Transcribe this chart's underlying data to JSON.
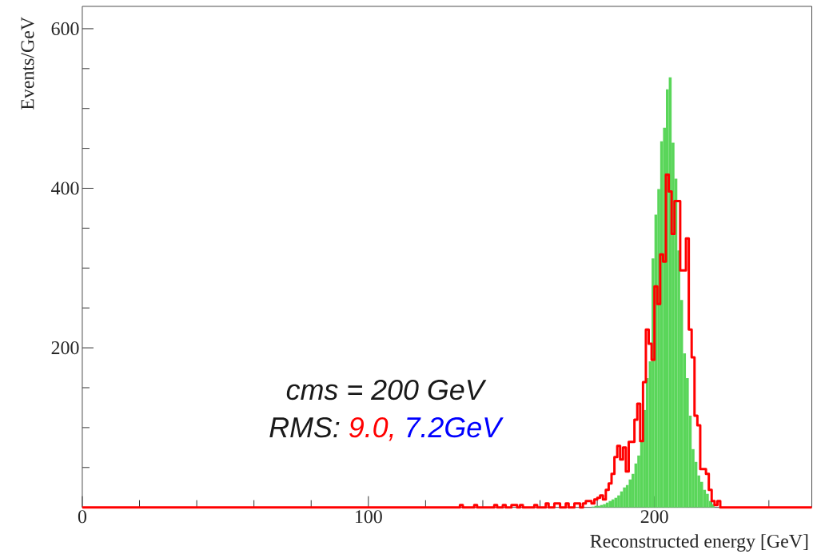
{
  "chart_data": {
    "type": "histogram",
    "xlabel": "Reconstructed energy [GeV]",
    "ylabel": "Events/GeV",
    "xlim": [
      0,
      255
    ],
    "ylim": [
      0,
      628
    ],
    "xticks": [
      0,
      {
        "value": 20,
        "label": null
      },
      {
        "value": 40,
        "label": null
      },
      {
        "value": 60,
        "label": null
      },
      {
        "value": 80,
        "label": null
      },
      100,
      {
        "value": 120,
        "label": null
      },
      {
        "value": 140,
        "label": null
      },
      {
        "value": 160,
        "label": null
      },
      {
        "value": 180,
        "label": null
      },
      200,
      {
        "value": 220,
        "label": null
      },
      {
        "value": 240,
        "label": null
      }
    ],
    "yticks": [
      {
        "value": 50,
        "label": null
      },
      {
        "value": 100,
        "label": null
      },
      {
        "value": 150,
        "label": null
      },
      200,
      {
        "value": 250,
        "label": null
      },
      {
        "value": 300,
        "label": null
      },
      {
        "value": 350,
        "label": null
      },
      400,
      {
        "value": 450,
        "label": null
      },
      {
        "value": 500,
        "label": null
      },
      {
        "value": 550,
        "label": null
      },
      600
    ],
    "annotations": [
      "cms = 200 GeV",
      "RMS:",
      "9.0,",
      "7.2GeV"
    ],
    "series": [
      {
        "color": "#5ad65a",
        "bins": [
          178,
          179,
          180,
          181,
          182,
          183,
          184,
          185,
          186,
          187,
          188,
          189,
          190,
          191,
          192,
          193,
          194,
          195,
          196,
          197,
          198,
          199,
          200,
          201,
          202,
          203,
          204,
          205,
          206,
          207,
          208,
          209,
          210,
          211,
          212,
          213,
          214,
          215,
          216,
          217,
          218,
          219,
          220,
          221
        ],
        "values": [
          1,
          2,
          2,
          3,
          4,
          6,
          8,
          10,
          12,
          15,
          20,
          25,
          28,
          35,
          42,
          55,
          65,
          82,
          122,
          162,
          183,
          312,
          367,
          399,
          459,
          476,
          524,
          539,
          457,
          412,
          322,
          260,
          193,
          162,
          115,
          73,
          57,
          40,
          32,
          22,
          17,
          8,
          4
        ]
      },
      {
        "type": "step",
        "color": "#ff0000",
        "x": [
          0,
          130,
          131,
          132,
          133,
          134,
          135,
          136,
          137,
          138,
          139,
          140,
          141,
          142,
          143,
          144,
          145,
          146,
          147,
          148,
          149,
          150,
          151,
          152,
          153,
          154,
          155,
          156,
          157,
          158,
          159,
          160,
          161,
          162,
          163,
          164,
          165,
          166,
          167,
          168,
          169,
          170,
          171,
          172,
          173,
          174,
          175,
          176,
          177,
          178,
          179,
          180,
          181,
          182,
          183,
          184,
          185,
          186,
          187,
          188,
          189,
          190,
          191,
          192,
          193,
          194,
          195,
          196,
          197,
          198,
          199,
          200,
          201,
          202,
          203,
          204,
          205,
          206,
          207,
          208,
          209,
          210,
          211,
          212,
          213,
          214,
          215,
          216,
          217,
          218,
          219,
          220,
          221,
          222,
          223,
          224,
          225,
          255
        ],
        "values": [
          0,
          0,
          0,
          3,
          0,
          0,
          0,
          0,
          3,
          0,
          0,
          0,
          0,
          0,
          0,
          3,
          0,
          0,
          3,
          0,
          0,
          3,
          3,
          0,
          3,
          0,
          0,
          0,
          0,
          3,
          0,
          0,
          0,
          5,
          0,
          0,
          5,
          5,
          0,
          0,
          5,
          0,
          0,
          5,
          5,
          0,
          5,
          8,
          8,
          5,
          10,
          12,
          15,
          10,
          22,
          30,
          42,
          63,
          77,
          60,
          75,
          45,
          82,
          82,
          110,
          130,
          83,
          157,
          223,
          205,
          185,
          277,
          255,
          317,
          308,
          417,
          396,
          343,
          384,
          384,
          297,
          297,
          337,
          223,
          188,
          115,
          103,
          48,
          48,
          42,
          22,
          8,
          3,
          8,
          0,
          0,
          0,
          0
        ]
      }
    ]
  }
}
